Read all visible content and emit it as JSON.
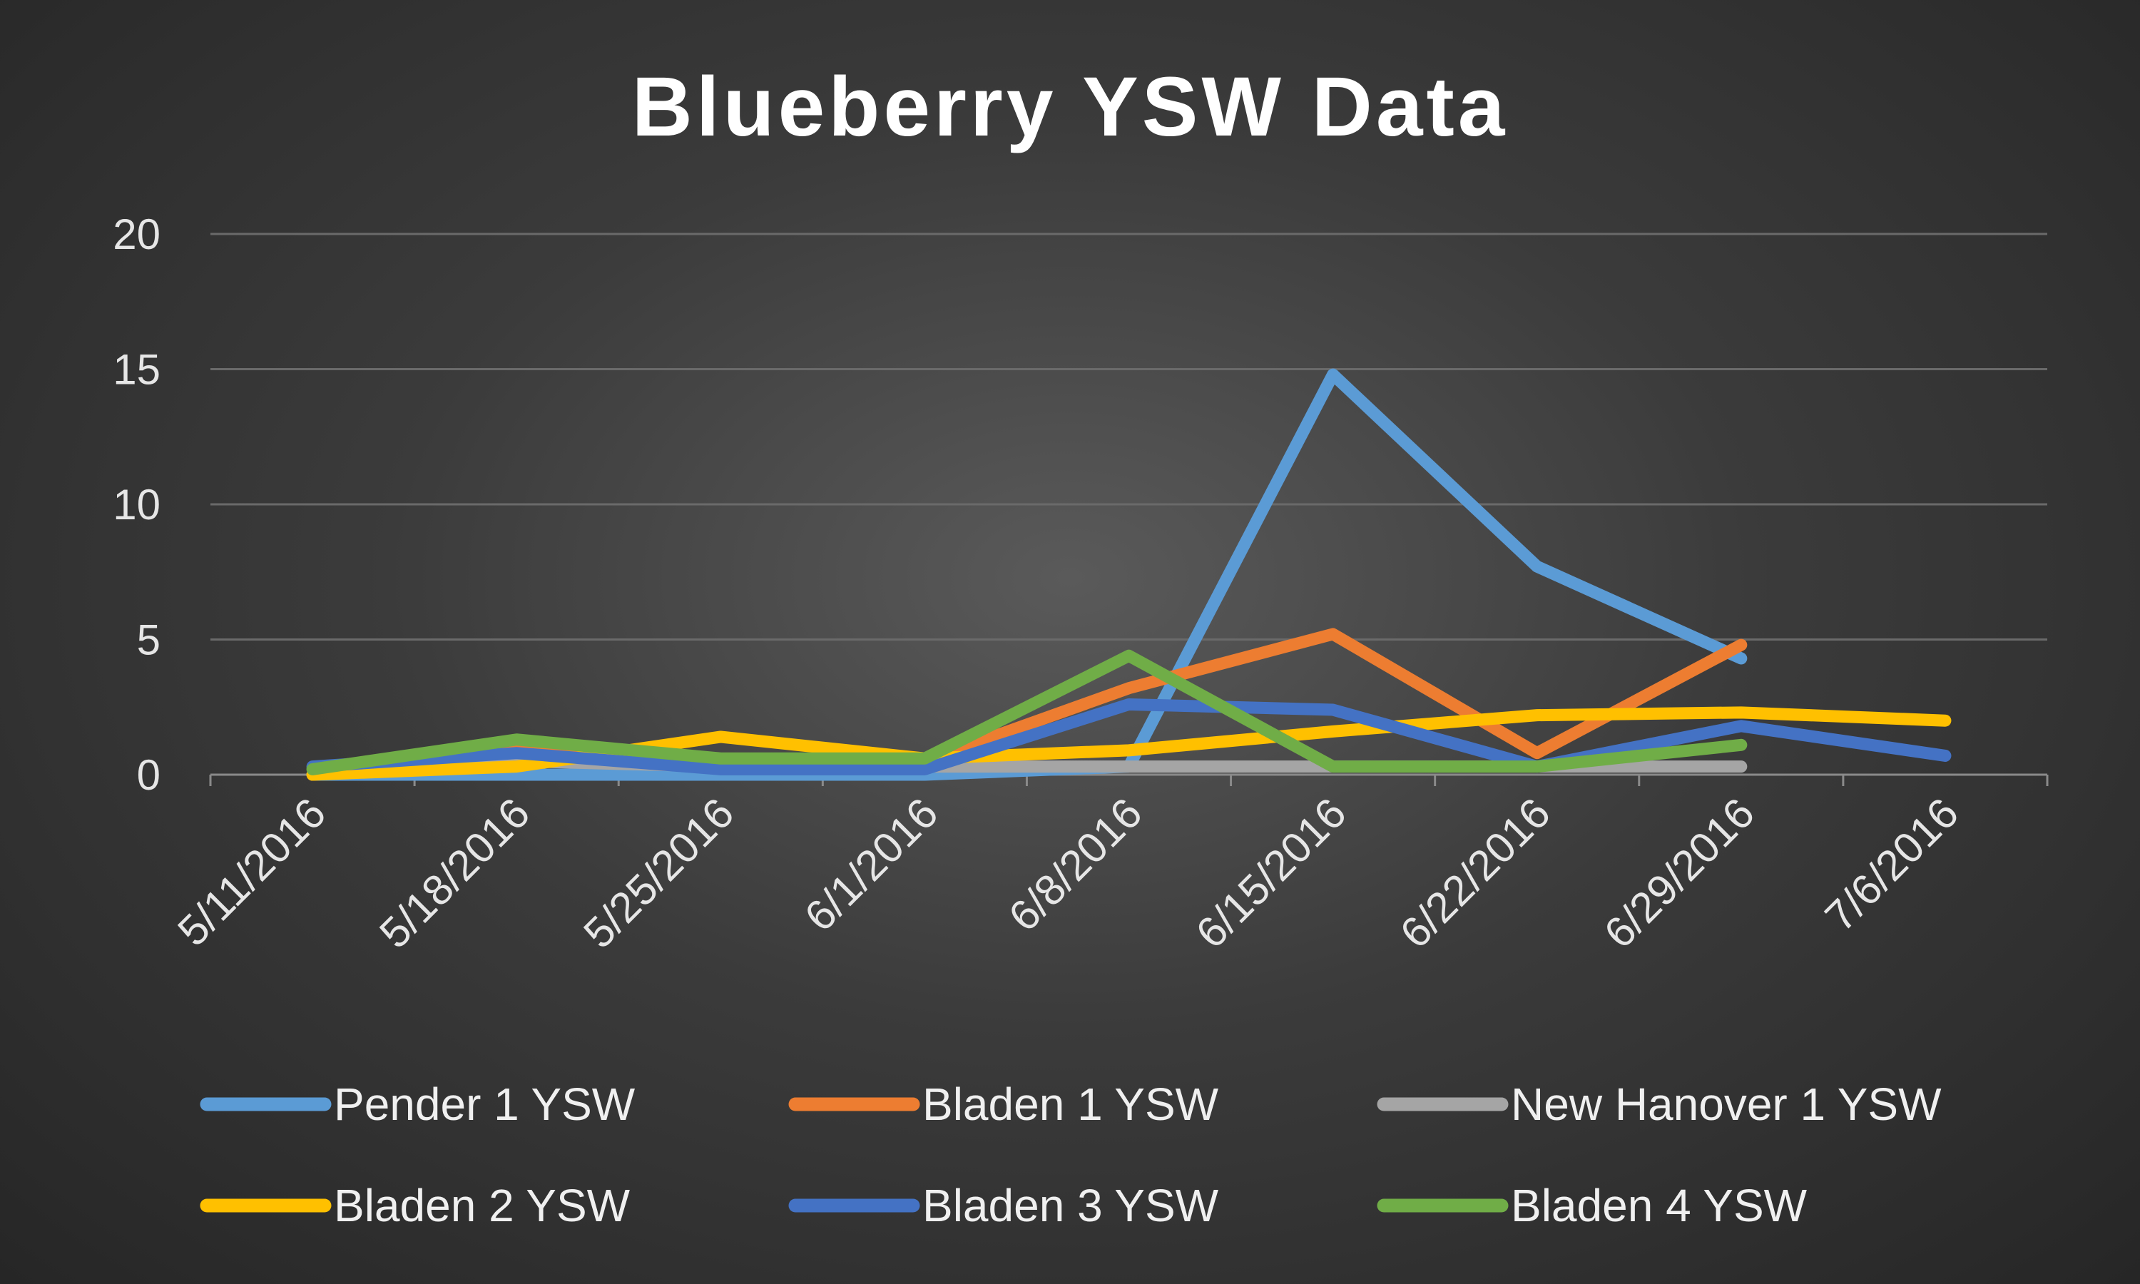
{
  "chart_data": {
    "type": "line",
    "title": "Blueberry YSW Data",
    "xlabel": "",
    "ylabel": "",
    "x": [
      "5/11/2016",
      "5/18/2016",
      "5/25/2016",
      "6/1/2016",
      "6/8/2016",
      "6/15/2016",
      "6/22/2016",
      "6/29/2016",
      "7/6/2016"
    ],
    "y_ticks": [
      "0",
      "5",
      "10",
      "15",
      "20"
    ],
    "ylim": [
      0,
      20
    ],
    "grid": true,
    "legend_position": "bottom",
    "series": [
      {
        "name": "Pender 1 YSW",
        "color": "#5b9bd5",
        "values": [
          0,
          0,
          0,
          0,
          0.3,
          14.8,
          7.7,
          4.3,
          null
        ]
      },
      {
        "name": "Bladen 1 YSW",
        "color": "#ed7d31",
        "values": [
          0,
          1.0,
          0.5,
          0.5,
          3.2,
          5.2,
          0.8,
          4.8,
          null
        ]
      },
      {
        "name": "New Hanover 1 YSW",
        "color": "#a5a5a5",
        "values": [
          0,
          0.5,
          0.3,
          0.3,
          0.3,
          0.3,
          0.3,
          0.3,
          null
        ]
      },
      {
        "name": "Bladen 2 YSW",
        "color": "#ffc000",
        "values": [
          0,
          0.3,
          1.4,
          0.6,
          0.9,
          1.6,
          2.2,
          2.3,
          2.0
        ]
      },
      {
        "name": "Bladen 3 YSW",
        "color": "#4472c4",
        "values": [
          0.3,
          0.8,
          0.2,
          0.2,
          2.6,
          2.4,
          0.3,
          1.8,
          0.7
        ]
      },
      {
        "name": "Bladen 4 YSW",
        "color": "#70ad47",
        "values": [
          0.2,
          1.3,
          0.6,
          0.6,
          4.4,
          0.3,
          0.3,
          1.1,
          null
        ]
      }
    ]
  }
}
